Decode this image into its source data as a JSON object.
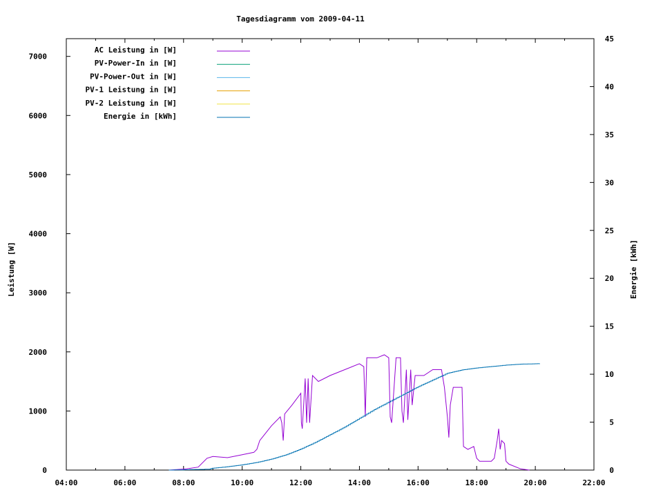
{
  "chart_data": {
    "type": "line",
    "title": "Tagesdiagramm vom 2009-04-11",
    "xlabel": "",
    "ylabel": "Leistung [W]",
    "y2label": "Energie [kWh]",
    "xlim": [
      4,
      22
    ],
    "ylim": [
      0,
      7300
    ],
    "y2lim": [
      0,
      45
    ],
    "x_ticks": [
      "04:00",
      "06:00",
      "08:00",
      "10:00",
      "12:00",
      "14:00",
      "16:00",
      "18:00",
      "20:00",
      "22:00"
    ],
    "y_ticks": [
      "0",
      "1000",
      "2000",
      "3000",
      "4000",
      "5000",
      "6000",
      "7000"
    ],
    "y2_ticks": [
      "0",
      "5",
      "10",
      "15",
      "20",
      "25",
      "30",
      "35",
      "40",
      "45"
    ],
    "grid": false,
    "legend_position": "top-left",
    "legend": [
      {
        "label": "AC Leistung in [W]",
        "color": "#9400d3"
      },
      {
        "label": "PV-Power-In in [W]",
        "color": "#009e73"
      },
      {
        "label": "PV-Power-Out in [W]",
        "color": "#56b4e9"
      },
      {
        "label": "PV-1 Leistung in [W]",
        "color": "#e69f00"
      },
      {
        "label": "PV-2 Leistung in [W]",
        "color": "#f0e442"
      },
      {
        "label": "Energie in [kWh]",
        "color": "#0072b2"
      }
    ],
    "series": [
      {
        "name": "AC Leistung in [W]",
        "axis": "y",
        "color": "#9400d3",
        "x": [
          7.5,
          8.1,
          8.5,
          8.8,
          9.0,
          9.5,
          10.0,
          10.4,
          10.5,
          10.6,
          11.0,
          11.3,
          11.35,
          11.4,
          11.45,
          11.7,
          12.0,
          12.02,
          12.05,
          12.15,
          12.2,
          12.25,
          12.3,
          12.4,
          12.6,
          13.0,
          13.5,
          14.0,
          14.15,
          14.2,
          14.25,
          14.6,
          14.85,
          15.0,
          15.05,
          15.1,
          15.25,
          15.4,
          15.45,
          15.5,
          15.6,
          15.65,
          15.75,
          15.8,
          15.9,
          16.2,
          16.5,
          16.8,
          16.9,
          17.0,
          17.05,
          17.1,
          17.2,
          17.5,
          17.55,
          17.7,
          17.9,
          18.0,
          18.1,
          18.5,
          18.6,
          18.7,
          18.75,
          18.8,
          18.85,
          18.95,
          19.0,
          19.1,
          19.5,
          19.8
        ],
        "y": [
          0,
          20,
          50,
          200,
          230,
          210,
          260,
          300,
          350,
          500,
          750,
          900,
          800,
          500,
          950,
          1100,
          1300,
          800,
          700,
          1550,
          800,
          1550,
          800,
          1600,
          1500,
          1600,
          1700,
          1800,
          1750,
          900,
          1900,
          1900,
          1950,
          1900,
          900,
          800,
          1900,
          1900,
          1000,
          800,
          1700,
          850,
          1700,
          1100,
          1600,
          1600,
          1700,
          1700,
          1400,
          900,
          550,
          1100,
          1400,
          1400,
          400,
          350,
          400,
          200,
          150,
          150,
          200,
          500,
          700,
          350,
          500,
          450,
          150,
          100,
          20,
          0
        ]
      },
      {
        "name": "Energie in [kWh]",
        "axis": "y2",
        "color": "#0072b2",
        "x": [
          7.5,
          8.9,
          9.0,
          9.5,
          10.0,
          10.5,
          11.0,
          11.5,
          12.0,
          12.5,
          13.0,
          13.5,
          14.0,
          14.5,
          15.0,
          15.5,
          16.0,
          16.5,
          17.0,
          17.5,
          18.0,
          18.5,
          19.0,
          19.5,
          20.15
        ],
        "y": [
          0,
          0.1,
          0.2,
          0.35,
          0.55,
          0.8,
          1.15,
          1.6,
          2.2,
          2.9,
          3.7,
          4.5,
          5.4,
          6.3,
          7.1,
          7.9,
          8.7,
          9.4,
          10.1,
          10.45,
          10.65,
          10.8,
          10.95,
          11.05,
          11.1
        ]
      }
    ]
  }
}
